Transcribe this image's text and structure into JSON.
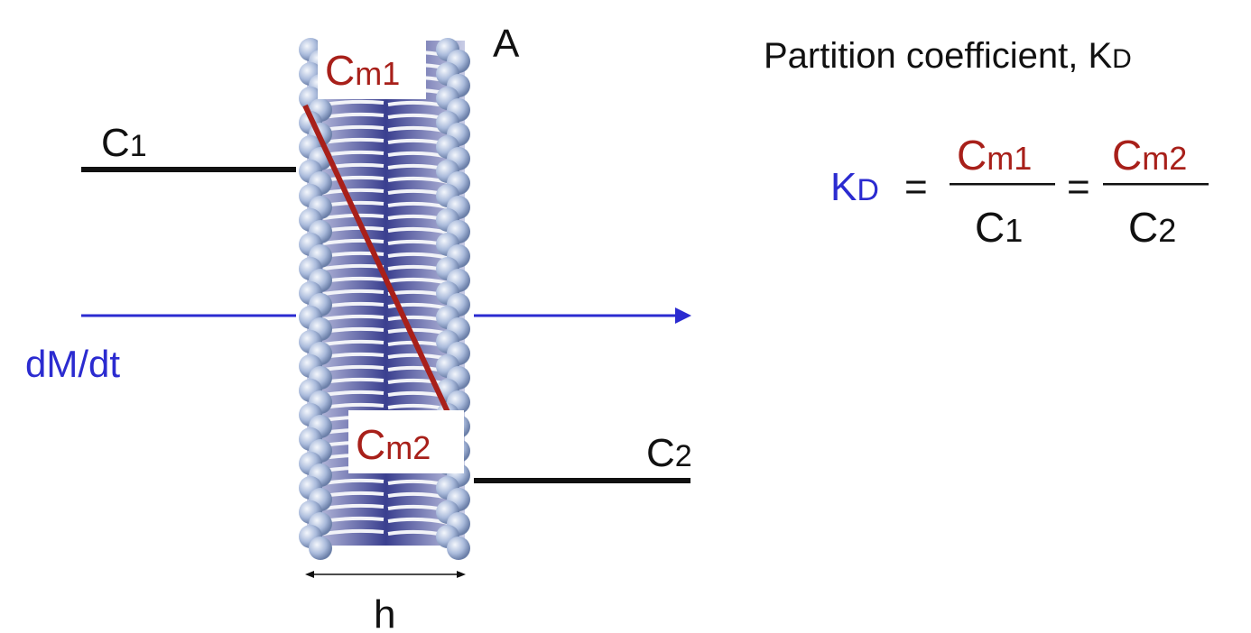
{
  "labels": {
    "corner": "A",
    "c1_main": "C",
    "c1_sub": "1",
    "c2_main": "C",
    "c2_sub": "2",
    "cm1_main": "C",
    "cm1_sub": "m1",
    "cm2_main": "C",
    "cm2_sub": "m2",
    "flux": "dM/dt",
    "thickness": "h"
  },
  "equation": {
    "title": "Partition coefficient, K",
    "title_sub": "D",
    "kd_main": "K",
    "kd_sub": "D",
    "equals": "=",
    "num1_main": "C",
    "num1_sub": "m1",
    "den1_main": "C",
    "den1_sub": "1",
    "num2_main": "C",
    "num2_sub": "m2",
    "den2_main": "C",
    "den2_sub": "2"
  },
  "colors": {
    "membrane_label": "#a8201a",
    "flux": "#2b2bd0",
    "concentration_line": "#111111",
    "head_bead": "#aabbd8",
    "tail_core": "#3a3f8f"
  }
}
